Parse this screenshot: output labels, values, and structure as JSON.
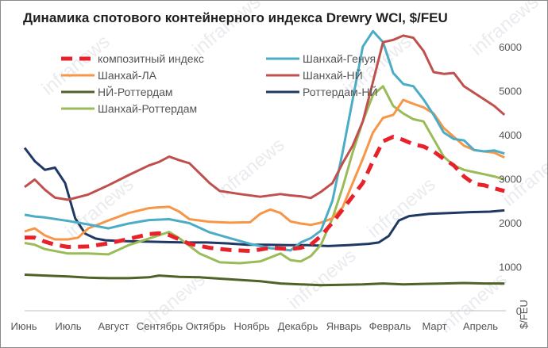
{
  "chart_data": {
    "type": "line",
    "title": "Динамика спотового контейнерного индекса Drewry WCI, $/FEU",
    "unit_label": "$/FEU",
    "watermark": "infranews",
    "x_start": "2020-06-01",
    "x_end": "2021-04-30",
    "months": [
      "Июнь",
      "Июль",
      "Август",
      "Сентябрь",
      "Октябрь",
      "Ноябрь",
      "Декабрь",
      "Январь",
      "Февраль",
      "Март",
      "Апрель"
    ],
    "ylim": [
      0,
      6500
    ],
    "yticks": [
      0,
      1000,
      2000,
      3000,
      4000,
      5000,
      6000
    ],
    "y_axis_side": "right",
    "grid": false,
    "legend_position": "top-left",
    "series": [
      {
        "name": "композитный индекс",
        "color": "#e8222a",
        "dashed": true,
        "width": 5,
        "points": [
          [
            "2020-06-01",
            1660
          ],
          [
            "2020-06-08",
            1660
          ],
          [
            "2020-06-15",
            1570
          ],
          [
            "2020-06-22",
            1500
          ],
          [
            "2020-07-01",
            1450
          ],
          [
            "2020-07-15",
            1460
          ],
          [
            "2020-07-29",
            1530
          ],
          [
            "2020-08-12",
            1630
          ],
          [
            "2020-08-26",
            1740
          ],
          [
            "2020-09-02",
            1760
          ],
          [
            "2020-09-09",
            1720
          ],
          [
            "2020-09-16",
            1620
          ],
          [
            "2020-09-23",
            1520
          ],
          [
            "2020-10-07",
            1430
          ],
          [
            "2020-10-21",
            1380
          ],
          [
            "2020-11-04",
            1360
          ],
          [
            "2020-11-11",
            1390
          ],
          [
            "2020-11-18",
            1430
          ],
          [
            "2020-12-02",
            1400
          ],
          [
            "2020-12-09",
            1430
          ],
          [
            "2020-12-16",
            1500
          ],
          [
            "2020-12-23",
            1700
          ],
          [
            "2020-12-31",
            2000
          ],
          [
            "2021-01-07",
            2300
          ],
          [
            "2021-01-14",
            2600
          ],
          [
            "2021-01-21",
            2900
          ],
          [
            "2021-01-28",
            3400
          ],
          [
            "2021-02-04",
            3850
          ],
          [
            "2021-02-11",
            3950
          ],
          [
            "2021-02-18",
            3880
          ],
          [
            "2021-02-25",
            3780
          ],
          [
            "2021-03-04",
            3730
          ],
          [
            "2021-03-11",
            3620
          ],
          [
            "2021-03-18",
            3450
          ],
          [
            "2021-03-25",
            3300
          ],
          [
            "2021-04-01",
            3050
          ],
          [
            "2021-04-08",
            2880
          ],
          [
            "2021-04-15",
            2850
          ],
          [
            "2021-04-22",
            2780
          ],
          [
            "2021-04-29",
            2720
          ]
        ]
      },
      {
        "name": "Шанхай-Генуя",
        "color": "#4bacc6",
        "dashed": false,
        "width": 3,
        "points": [
          [
            "2020-06-01",
            2180
          ],
          [
            "2020-06-08",
            2140
          ],
          [
            "2020-06-15",
            2120
          ],
          [
            "2020-07-01",
            2040
          ],
          [
            "2020-07-15",
            1960
          ],
          [
            "2020-07-29",
            1870
          ],
          [
            "2020-08-12",
            1980
          ],
          [
            "2020-08-26",
            2060
          ],
          [
            "2020-09-09",
            2080
          ],
          [
            "2020-09-23",
            1990
          ],
          [
            "2020-10-07",
            1780
          ],
          [
            "2020-10-21",
            1650
          ],
          [
            "2020-11-04",
            1520
          ],
          [
            "2020-11-18",
            1420
          ],
          [
            "2020-11-25",
            1400
          ],
          [
            "2020-12-02",
            1370
          ],
          [
            "2020-12-09",
            1550
          ],
          [
            "2020-12-16",
            1650
          ],
          [
            "2020-12-23",
            1820
          ],
          [
            "2020-12-31",
            2500
          ],
          [
            "2021-01-07",
            3600
          ],
          [
            "2021-01-14",
            4800
          ],
          [
            "2021-01-21",
            6000
          ],
          [
            "2021-01-28",
            6350
          ],
          [
            "2021-02-04",
            6100
          ],
          [
            "2021-02-11",
            5400
          ],
          [
            "2021-02-18",
            5150
          ],
          [
            "2021-02-25",
            5100
          ],
          [
            "2021-03-04",
            4800
          ],
          [
            "2021-03-11",
            4450
          ],
          [
            "2021-03-18",
            4050
          ],
          [
            "2021-03-25",
            3900
          ],
          [
            "2021-04-01",
            3870
          ],
          [
            "2021-04-08",
            3650
          ],
          [
            "2021-04-15",
            3620
          ],
          [
            "2021-04-22",
            3640
          ],
          [
            "2021-04-29",
            3570
          ]
        ]
      },
      {
        "name": "Шанхай-ЛА",
        "color": "#f79646",
        "dashed": false,
        "width": 3,
        "points": [
          [
            "2020-06-01",
            1800
          ],
          [
            "2020-06-08",
            1870
          ],
          [
            "2020-06-15",
            1710
          ],
          [
            "2020-06-22",
            1620
          ],
          [
            "2020-07-01",
            1620
          ],
          [
            "2020-07-08",
            1660
          ],
          [
            "2020-07-15",
            1870
          ],
          [
            "2020-07-29",
            2050
          ],
          [
            "2020-08-12",
            2220
          ],
          [
            "2020-08-26",
            2330
          ],
          [
            "2020-09-02",
            2350
          ],
          [
            "2020-09-09",
            2360
          ],
          [
            "2020-09-16",
            2250
          ],
          [
            "2020-09-23",
            2080
          ],
          [
            "2020-10-07",
            2020
          ],
          [
            "2020-10-21",
            2000
          ],
          [
            "2020-11-04",
            2010
          ],
          [
            "2020-11-11",
            2200
          ],
          [
            "2020-11-18",
            2300
          ],
          [
            "2020-11-25",
            2220
          ],
          [
            "2020-12-02",
            2030
          ],
          [
            "2020-12-09",
            1980
          ],
          [
            "2020-12-16",
            1950
          ],
          [
            "2020-12-23",
            2000
          ],
          [
            "2020-12-31",
            2100
          ],
          [
            "2021-01-07",
            2350
          ],
          [
            "2021-01-14",
            2900
          ],
          [
            "2021-01-21",
            3450
          ],
          [
            "2021-01-28",
            4050
          ],
          [
            "2021-02-04",
            4380
          ],
          [
            "2021-02-11",
            4450
          ],
          [
            "2021-02-18",
            4790
          ],
          [
            "2021-02-25",
            4700
          ],
          [
            "2021-03-04",
            4620
          ],
          [
            "2021-03-11",
            4480
          ],
          [
            "2021-03-18",
            4150
          ],
          [
            "2021-03-25",
            3950
          ],
          [
            "2021-04-01",
            3750
          ],
          [
            "2021-04-08",
            3650
          ],
          [
            "2021-04-15",
            3620
          ],
          [
            "2021-04-22",
            3590
          ],
          [
            "2021-04-29",
            3480
          ]
        ]
      },
      {
        "name": "Шанхай-НЙ",
        "color": "#c0504d",
        "dashed": false,
        "width": 3,
        "points": [
          [
            "2020-06-01",
            2810
          ],
          [
            "2020-06-08",
            2980
          ],
          [
            "2020-06-15",
            2750
          ],
          [
            "2020-06-22",
            2570
          ],
          [
            "2020-07-01",
            2520
          ],
          [
            "2020-07-15",
            2640
          ],
          [
            "2020-07-29",
            2850
          ],
          [
            "2020-08-12",
            3080
          ],
          [
            "2020-08-26",
            3300
          ],
          [
            "2020-09-02",
            3380
          ],
          [
            "2020-09-09",
            3500
          ],
          [
            "2020-09-16",
            3420
          ],
          [
            "2020-09-23",
            3350
          ],
          [
            "2020-10-07",
            2900
          ],
          [
            "2020-10-14",
            2720
          ],
          [
            "2020-10-28",
            2650
          ],
          [
            "2020-11-11",
            2590
          ],
          [
            "2020-11-25",
            2650
          ],
          [
            "2020-12-02",
            2620
          ],
          [
            "2020-12-09",
            2600
          ],
          [
            "2020-12-16",
            2560
          ],
          [
            "2020-12-23",
            2700
          ],
          [
            "2020-12-31",
            2900
          ],
          [
            "2021-01-07",
            3350
          ],
          [
            "2021-01-14",
            3750
          ],
          [
            "2021-01-21",
            4300
          ],
          [
            "2021-01-28",
            5200
          ],
          [
            "2021-02-04",
            6100
          ],
          [
            "2021-02-11",
            6150
          ],
          [
            "2021-02-18",
            6250
          ],
          [
            "2021-02-25",
            6200
          ],
          [
            "2021-03-04",
            5900
          ],
          [
            "2021-03-11",
            5420
          ],
          [
            "2021-03-18",
            5380
          ],
          [
            "2021-03-25",
            5400
          ],
          [
            "2021-04-01",
            5100
          ],
          [
            "2021-04-08",
            4950
          ],
          [
            "2021-04-15",
            4800
          ],
          [
            "2021-04-22",
            4650
          ],
          [
            "2021-04-29",
            4450
          ]
        ]
      },
      {
        "name": "НЙ-Роттердам",
        "color": "#4f6228",
        "dashed": false,
        "width": 3,
        "points": [
          [
            "2020-06-01",
            820
          ],
          [
            "2020-06-15",
            800
          ],
          [
            "2020-07-01",
            780
          ],
          [
            "2020-07-15",
            750
          ],
          [
            "2020-07-29",
            740
          ],
          [
            "2020-08-12",
            740
          ],
          [
            "2020-08-26",
            760
          ],
          [
            "2020-09-02",
            800
          ],
          [
            "2020-09-16",
            770
          ],
          [
            "2020-09-30",
            760
          ],
          [
            "2020-10-14",
            730
          ],
          [
            "2020-10-28",
            700
          ],
          [
            "2020-11-11",
            670
          ],
          [
            "2020-11-25",
            620
          ],
          [
            "2020-12-09",
            600
          ],
          [
            "2020-12-23",
            580
          ],
          [
            "2021-01-07",
            590
          ],
          [
            "2021-01-21",
            600
          ],
          [
            "2021-02-04",
            620
          ],
          [
            "2021-02-18",
            600
          ],
          [
            "2021-03-04",
            610
          ],
          [
            "2021-03-18",
            620
          ],
          [
            "2021-04-01",
            630
          ],
          [
            "2021-04-15",
            620
          ],
          [
            "2021-04-29",
            620
          ]
        ]
      },
      {
        "name": "Роттердам-НЙ",
        "color": "#1f3864",
        "dashed": false,
        "width": 3,
        "points": [
          [
            "2020-06-01",
            3700
          ],
          [
            "2020-06-08",
            3400
          ],
          [
            "2020-06-15",
            3200
          ],
          [
            "2020-06-22",
            3250
          ],
          [
            "2020-06-29",
            2900
          ],
          [
            "2020-07-06",
            2100
          ],
          [
            "2020-07-13",
            1750
          ],
          [
            "2020-07-20",
            1640
          ],
          [
            "2020-07-27",
            1600
          ],
          [
            "2020-08-10",
            1580
          ],
          [
            "2020-08-24",
            1570
          ],
          [
            "2020-09-07",
            1560
          ],
          [
            "2020-09-21",
            1550
          ],
          [
            "2020-10-05",
            1550
          ],
          [
            "2020-10-19",
            1530
          ],
          [
            "2020-11-02",
            1500
          ],
          [
            "2020-11-16",
            1500
          ],
          [
            "2020-11-30",
            1490
          ],
          [
            "2020-12-14",
            1490
          ],
          [
            "2020-12-28",
            1470
          ],
          [
            "2021-01-11",
            1490
          ],
          [
            "2021-01-25",
            1520
          ],
          [
            "2021-02-01",
            1550
          ],
          [
            "2021-02-08",
            1700
          ],
          [
            "2021-02-15",
            2050
          ],
          [
            "2021-02-22",
            2150
          ],
          [
            "2021-03-08",
            2200
          ],
          [
            "2021-03-22",
            2220
          ],
          [
            "2021-04-05",
            2240
          ],
          [
            "2021-04-19",
            2250
          ],
          [
            "2021-04-29",
            2280
          ]
        ]
      },
      {
        "name": "Шанхай-Роттердам",
        "color": "#9bbb59",
        "dashed": false,
        "width": 3,
        "points": [
          [
            "2020-06-01",
            1540
          ],
          [
            "2020-06-08",
            1500
          ],
          [
            "2020-06-15",
            1400
          ],
          [
            "2020-07-01",
            1300
          ],
          [
            "2020-07-15",
            1300
          ],
          [
            "2020-07-29",
            1280
          ],
          [
            "2020-08-12",
            1490
          ],
          [
            "2020-08-26",
            1640
          ],
          [
            "2020-09-09",
            1790
          ],
          [
            "2020-09-16",
            1650
          ],
          [
            "2020-09-30",
            1300
          ],
          [
            "2020-10-14",
            1100
          ],
          [
            "2020-10-28",
            1080
          ],
          [
            "2020-11-11",
            1120
          ],
          [
            "2020-11-25",
            1300
          ],
          [
            "2020-12-02",
            1150
          ],
          [
            "2020-12-09",
            1120
          ],
          [
            "2020-12-16",
            1240
          ],
          [
            "2020-12-23",
            1500
          ],
          [
            "2020-12-31",
            2100
          ],
          [
            "2021-01-07",
            2800
          ],
          [
            "2021-01-14",
            3600
          ],
          [
            "2021-01-21",
            4300
          ],
          [
            "2021-01-28",
            4900
          ],
          [
            "2021-02-04",
            5100
          ],
          [
            "2021-02-11",
            4650
          ],
          [
            "2021-02-18",
            4480
          ],
          [
            "2021-02-25",
            4350
          ],
          [
            "2021-03-04",
            4300
          ],
          [
            "2021-03-11",
            3900
          ],
          [
            "2021-03-18",
            3500
          ],
          [
            "2021-03-25",
            3300
          ],
          [
            "2021-04-01",
            3200
          ],
          [
            "2021-04-08",
            3150
          ],
          [
            "2021-04-15",
            3100
          ],
          [
            "2021-04-22",
            3050
          ],
          [
            "2021-04-29",
            2980
          ]
        ]
      }
    ]
  }
}
